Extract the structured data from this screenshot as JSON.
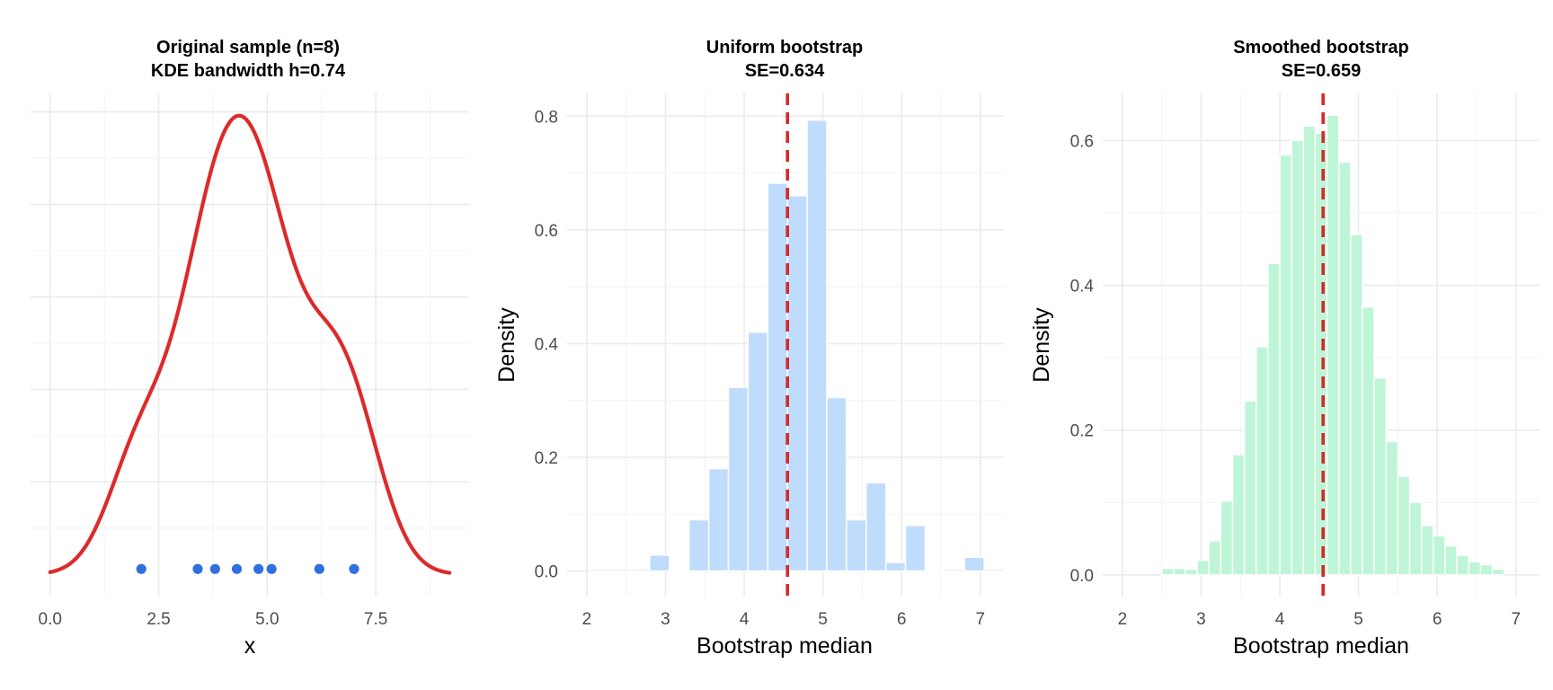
{
  "chart_data": [
    {
      "type": "line",
      "title_lines": [
        "Original sample (n=8)",
        "KDE bandwidth h=0.74"
      ],
      "xlabel": "x",
      "ylabel": "",
      "xlim": [
        -0.45,
        9.65
      ],
      "ylim": [
        -0.012,
        0.26
      ],
      "x_ticks": [
        0,
        2.5,
        5,
        7.5
      ],
      "x_tick_labels": [
        "0.0",
        "2.5",
        "5.0",
        "7.5"
      ],
      "y_grid": [
        0.025,
        0.05,
        0.075,
        0.1,
        0.125,
        0.15,
        0.175,
        0.2,
        0.225,
        0.25
      ],
      "y_tick_labels_shown": false,
      "grid": true,
      "points": [
        2.1,
        3.4,
        3.8,
        4.3,
        4.8,
        5.1,
        6.2,
        7.0
      ],
      "point_color": "#2f6fe0",
      "kde_bandwidth": 0.74,
      "curve_color": "#dd2a2a",
      "curve_range": [
        0,
        9.2
      ]
    },
    {
      "type": "bar",
      "title_lines": [
        "Uniform bootstrap",
        "SE=0.634"
      ],
      "xlabel": "Bootstrap median",
      "ylabel": "Density",
      "xlim": [
        1.75,
        7.3
      ],
      "ylim": [
        -0.045,
        0.84
      ],
      "x_ticks": [
        2,
        3,
        4,
        5,
        6,
        7
      ],
      "x_tick_labels": [
        "2",
        "3",
        "4",
        "5",
        "6",
        "7"
      ],
      "y_ticks": [
        0,
        0.2,
        0.4,
        0.6,
        0.8
      ],
      "y_tick_labels": [
        "0.0",
        "0.2",
        "0.4",
        "0.6",
        "0.8"
      ],
      "grid": true,
      "bar_color": "#c0dcfc",
      "bin_width": 0.25,
      "bins": [
        {
          "x0": 2.05,
          "value": 0.003
        },
        {
          "x0": 2.3,
          "value": 0.003
        },
        {
          "x0": 2.55,
          "value": 0.003
        },
        {
          "x0": 2.8,
          "value": 0.028
        },
        {
          "x0": 3.05,
          "value": 0.002
        },
        {
          "x0": 3.3,
          "value": 0.09
        },
        {
          "x0": 3.55,
          "value": 0.18
        },
        {
          "x0": 3.8,
          "value": 0.323
        },
        {
          "x0": 4.05,
          "value": 0.42
        },
        {
          "x0": 4.3,
          "value": 0.682
        },
        {
          "x0": 4.55,
          "value": 0.66
        },
        {
          "x0": 4.8,
          "value": 0.793
        },
        {
          "x0": 5.05,
          "value": 0.305
        },
        {
          "x0": 5.3,
          "value": 0.09
        },
        {
          "x0": 5.55,
          "value": 0.155
        },
        {
          "x0": 5.8,
          "value": 0.015
        },
        {
          "x0": 6.05,
          "value": 0.08
        },
        {
          "x0": 6.3,
          "value": 0.002
        },
        {
          "x0": 6.55,
          "value": 0.003
        },
        {
          "x0": 6.8,
          "value": 0.024
        },
        {
          "x0": 7.05,
          "value": 0.003
        }
      ],
      "vline": {
        "x": 4.55,
        "color": "#d42a2a",
        "style": "dashed"
      }
    },
    {
      "type": "bar",
      "title_lines": [
        "Smoothed bootstrap",
        "SE=0.659"
      ],
      "xlabel": "Bootstrap median",
      "ylabel": "Density",
      "xlim": [
        1.75,
        7.3
      ],
      "ylim": [
        -0.03,
        0.665
      ],
      "x_ticks": [
        2,
        3,
        4,
        5,
        6,
        7
      ],
      "x_tick_labels": [
        "2",
        "3",
        "4",
        "5",
        "6",
        "7"
      ],
      "y_ticks": [
        0,
        0.2,
        0.4,
        0.6
      ],
      "y_tick_labels": [
        "0.0",
        "0.2",
        "0.4",
        "0.6"
      ],
      "grid": true,
      "bar_color": "#bff5d7",
      "bin_width": 0.15,
      "bins": [
        {
          "x0": 2.5,
          "value": 0.009
        },
        {
          "x0": 2.65,
          "value": 0.009
        },
        {
          "x0": 2.8,
          "value": 0.008
        },
        {
          "x0": 2.95,
          "value": 0.02
        },
        {
          "x0": 3.1,
          "value": 0.047
        },
        {
          "x0": 3.25,
          "value": 0.102
        },
        {
          "x0": 3.4,
          "value": 0.166
        },
        {
          "x0": 3.55,
          "value": 0.24
        },
        {
          "x0": 3.7,
          "value": 0.315
        },
        {
          "x0": 3.85,
          "value": 0.43
        },
        {
          "x0": 4.0,
          "value": 0.58
        },
        {
          "x0": 4.15,
          "value": 0.6
        },
        {
          "x0": 4.3,
          "value": 0.62
        },
        {
          "x0": 4.45,
          "value": 0.61
        },
        {
          "x0": 4.6,
          "value": 0.635
        },
        {
          "x0": 4.75,
          "value": 0.57
        },
        {
          "x0": 4.9,
          "value": 0.47
        },
        {
          "x0": 5.05,
          "value": 0.37
        },
        {
          "x0": 5.2,
          "value": 0.272
        },
        {
          "x0": 5.35,
          "value": 0.184
        },
        {
          "x0": 5.5,
          "value": 0.136
        },
        {
          "x0": 5.65,
          "value": 0.1
        },
        {
          "x0": 5.8,
          "value": 0.068
        },
        {
          "x0": 5.95,
          "value": 0.054
        },
        {
          "x0": 6.1,
          "value": 0.04
        },
        {
          "x0": 6.25,
          "value": 0.027
        },
        {
          "x0": 6.4,
          "value": 0.018
        },
        {
          "x0": 6.55,
          "value": 0.014
        },
        {
          "x0": 6.7,
          "value": 0.008
        }
      ],
      "vline": {
        "x": 4.55,
        "color": "#d42a2a",
        "style": "dashed"
      }
    }
  ]
}
